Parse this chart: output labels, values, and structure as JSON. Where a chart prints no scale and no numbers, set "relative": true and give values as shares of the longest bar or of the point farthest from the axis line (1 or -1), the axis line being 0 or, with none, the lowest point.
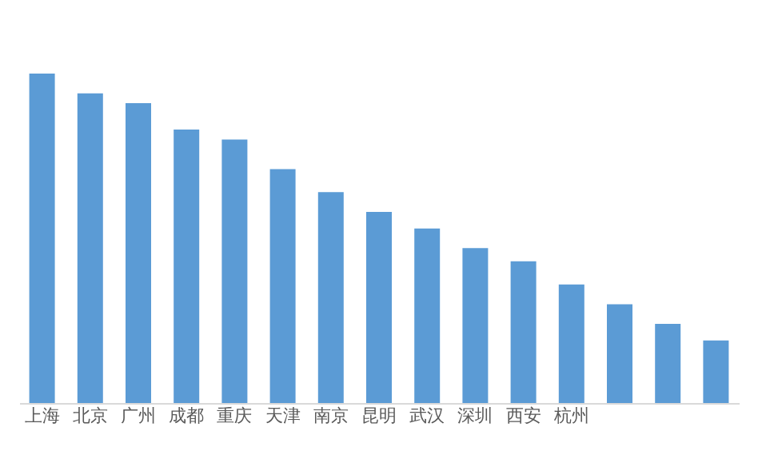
{
  "chart_data": {
    "type": "bar",
    "relative": true,
    "categories": [
      "上海",
      "北京",
      "广州",
      "成都",
      "重庆",
      "天津",
      "南京",
      "昆明",
      "武汉",
      "深圳",
      "西安",
      "杭州",
      null,
      null,
      null
    ],
    "values": [
      1,
      0.94,
      0.91,
      0.83,
      0.8,
      0.71,
      0.64,
      0.58,
      0.53,
      0.47,
      0.43,
      0.36,
      0.3,
      0.24,
      0.19
    ],
    "color": "#5b9bd5",
    "grid": false
  }
}
